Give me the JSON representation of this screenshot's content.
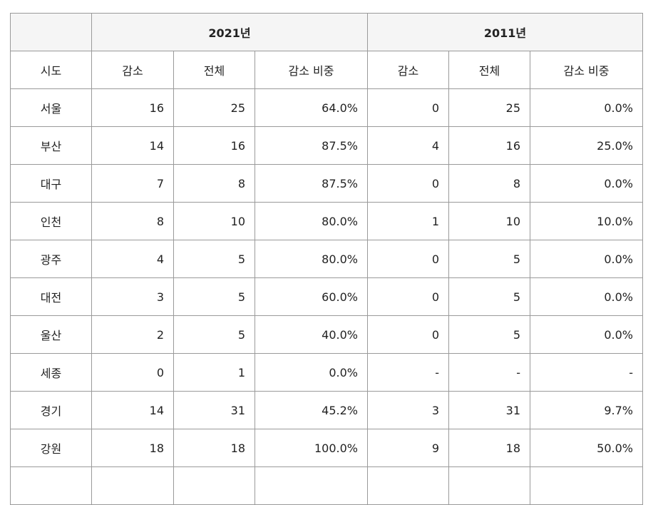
{
  "headers": {
    "years": [
      "2021년",
      "2011년"
    ],
    "columns": [
      "시도",
      "감소",
      "전체",
      "감소 비중",
      "감소",
      "전체",
      "감소 비중"
    ]
  },
  "rows": [
    [
      "서울",
      "16",
      "25",
      "64.0%",
      "0",
      "25",
      "0.0%"
    ],
    [
      "부산",
      "14",
      "16",
      "87.5%",
      "4",
      "16",
      "25.0%"
    ],
    [
      "대구",
      "7",
      "8",
      "87.5%",
      "0",
      "8",
      "0.0%"
    ],
    [
      "인천",
      "8",
      "10",
      "80.0%",
      "1",
      "10",
      "10.0%"
    ],
    [
      "광주",
      "4",
      "5",
      "80.0%",
      "0",
      "5",
      "0.0%"
    ],
    [
      "대전",
      "3",
      "5",
      "60.0%",
      "0",
      "5",
      "0.0%"
    ],
    [
      "울산",
      "2",
      "5",
      "40.0%",
      "0",
      "5",
      "0.0%"
    ],
    [
      "세종",
      "0",
      "1",
      "0.0%",
      "-",
      "-",
      "-"
    ],
    [
      "경기",
      "14",
      "31",
      "45.2%",
      "3",
      "31",
      "9.7%"
    ],
    [
      "강원",
      "18",
      "18",
      "100.0%",
      "9",
      "18",
      "50.0%"
    ],
    [
      "",
      "",
      "",
      "",
      "",
      "",
      ""
    ]
  ]
}
